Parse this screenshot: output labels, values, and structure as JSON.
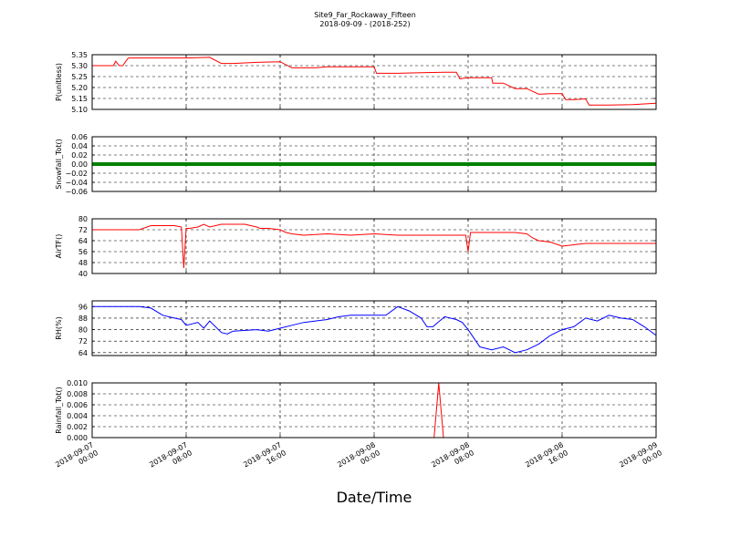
{
  "figure": {
    "title_line1": "Site9_Far_Rockaway_Fifteen",
    "title_line2": "2018-09-09 - (2018-252)",
    "xlabel": "Date/Time",
    "x_ticks": [
      [
        "2018-09-07",
        "00:00"
      ],
      [
        "2018-09-07",
        "08:00"
      ],
      [
        "2018-09-07",
        "16:00"
      ],
      [
        "2018-09-08",
        "00:00"
      ],
      [
        "2018-09-08",
        "08:00"
      ],
      [
        "2018-09-08",
        "16:00"
      ],
      [
        "2018-09-09",
        "00:00"
      ]
    ],
    "colors": {
      "pressure": "#ff0000",
      "snowfall": "#008000",
      "airtemp": "#ff0000",
      "rh": "#0000ff",
      "rainfall": "#ff0000",
      "grid": "#000000"
    }
  },
  "chart_data": [
    {
      "type": "line",
      "ylabel": "P(unitless)",
      "x_range_hours": [
        0,
        48
      ],
      "ylim": [
        5.1,
        5.35
      ],
      "yticks": [
        "5.10",
        "5.15",
        "5.20",
        "5.25",
        "5.30",
        "5.35"
      ],
      "grid": true,
      "series": [
        {
          "x": [
            0,
            1.8,
            2.0,
            2.3,
            2.6,
            3.0,
            3.1,
            4,
            6,
            8,
            10,
            11,
            12,
            14,
            16,
            17,
            18,
            19,
            20,
            21,
            23,
            24,
            24.2,
            26,
            28,
            30,
            31,
            31.3,
            32,
            33,
            34,
            34.1,
            34.5,
            35,
            36,
            36.1,
            37,
            38,
            38.2,
            39,
            40,
            40.3,
            41,
            42,
            42.3,
            44,
            46,
            47,
            48
          ],
          "y": [
            5.3,
            5.3,
            5.32,
            5.3,
            5.3,
            5.33,
            5.335,
            5.335,
            5.335,
            5.335,
            5.338,
            5.31,
            5.31,
            5.315,
            5.318,
            5.29,
            5.29,
            5.29,
            5.295,
            5.295,
            5.295,
            5.295,
            5.265,
            5.265,
            5.268,
            5.27,
            5.27,
            5.24,
            5.245,
            5.245,
            5.245,
            5.22,
            5.22,
            5.22,
            5.195,
            5.195,
            5.195,
            5.17,
            5.17,
            5.172,
            5.172,
            5.145,
            5.145,
            5.148,
            5.12,
            5.12,
            5.122,
            5.125,
            5.128
          ]
        }
      ]
    },
    {
      "type": "line",
      "ylabel": "Snowfall_Tot()",
      "x_range_hours": [
        0,
        48
      ],
      "ylim": [
        -0.06,
        0.06
      ],
      "yticks": [
        "−0.06",
        "−0.04",
        "−0.02",
        "0.00",
        "0.02",
        "0.04",
        "0.06"
      ],
      "grid": true,
      "series": [
        {
          "x": [
            0,
            48
          ],
          "y": [
            0,
            0
          ]
        }
      ]
    },
    {
      "type": "line",
      "ylabel": "AirTF()",
      "x_range_hours": [
        0,
        48
      ],
      "ylim": [
        40,
        80
      ],
      "yticks": [
        "40",
        "48",
        "56",
        "64",
        "72",
        "80"
      ],
      "grid": true,
      "series": [
        {
          "x": [
            0,
            2,
            4,
            5,
            6,
            7,
            7.6,
            7.8,
            8.0,
            8.3,
            9,
            9.5,
            10,
            11,
            12,
            13,
            14,
            14.3,
            15,
            16,
            16.5,
            17,
            18,
            20,
            22,
            24,
            26,
            28,
            29,
            30,
            31,
            31.8,
            32.0,
            32.2,
            33,
            34,
            35,
            36,
            37,
            37.5,
            38,
            39,
            40,
            41,
            42,
            44,
            46,
            48
          ],
          "y": [
            72,
            72,
            72,
            75,
            75,
            75,
            74,
            44,
            73,
            73,
            74,
            76,
            74,
            76,
            76,
            76,
            74,
            73,
            73,
            72,
            70,
            69,
            68,
            69,
            68,
            69,
            68,
            68,
            68,
            68,
            68,
            68,
            56,
            70,
            70,
            70,
            70,
            70,
            69,
            66,
            64,
            63,
            60,
            61,
            62,
            62,
            62,
            62
          ]
        }
      ]
    },
    {
      "type": "line",
      "ylabel": "RH(%)",
      "x_range_hours": [
        0,
        48
      ],
      "ylim": [
        62,
        100
      ],
      "yticks": [
        "64",
        "72",
        "80",
        "88",
        "96"
      ],
      "grid": true,
      "series": [
        {
          "x": [
            0,
            2,
            4,
            5,
            6,
            7,
            7.6,
            8,
            9,
            9.5,
            10,
            11,
            11.5,
            12,
            14,
            15,
            16,
            17,
            18,
            19,
            20,
            21,
            22,
            23,
            24,
            25,
            26,
            27,
            28,
            28.5,
            29,
            30,
            31,
            31.5,
            32,
            33,
            34,
            35,
            36,
            37,
            38,
            39,
            40,
            41,
            42,
            43,
            44,
            45,
            46,
            47,
            48
          ],
          "y": [
            96,
            96,
            96,
            95,
            90,
            88,
            87,
            83,
            85,
            81,
            86,
            78,
            77,
            79,
            80,
            79,
            81,
            83,
            85,
            86,
            87,
            89,
            90,
            90,
            90,
            90,
            96,
            93,
            88,
            82,
            82,
            89,
            87,
            85,
            80,
            68,
            66,
            68,
            64,
            66,
            70,
            76,
            80,
            82,
            88,
            86,
            90,
            88,
            87,
            82,
            76
          ]
        }
      ]
    },
    {
      "type": "line",
      "ylabel": "Rainfall_Tot()",
      "x_range_hours": [
        0,
        48
      ],
      "ylim": [
        0,
        0.01
      ],
      "yticks": [
        "0.000",
        "0.002",
        "0.004",
        "0.006",
        "0.008",
        "0.010"
      ],
      "grid": true,
      "series": [
        {
          "x": [
            0,
            29.1,
            29.5,
            29.9,
            48
          ],
          "y": [
            0,
            0,
            0.01,
            0,
            0
          ]
        }
      ]
    }
  ]
}
